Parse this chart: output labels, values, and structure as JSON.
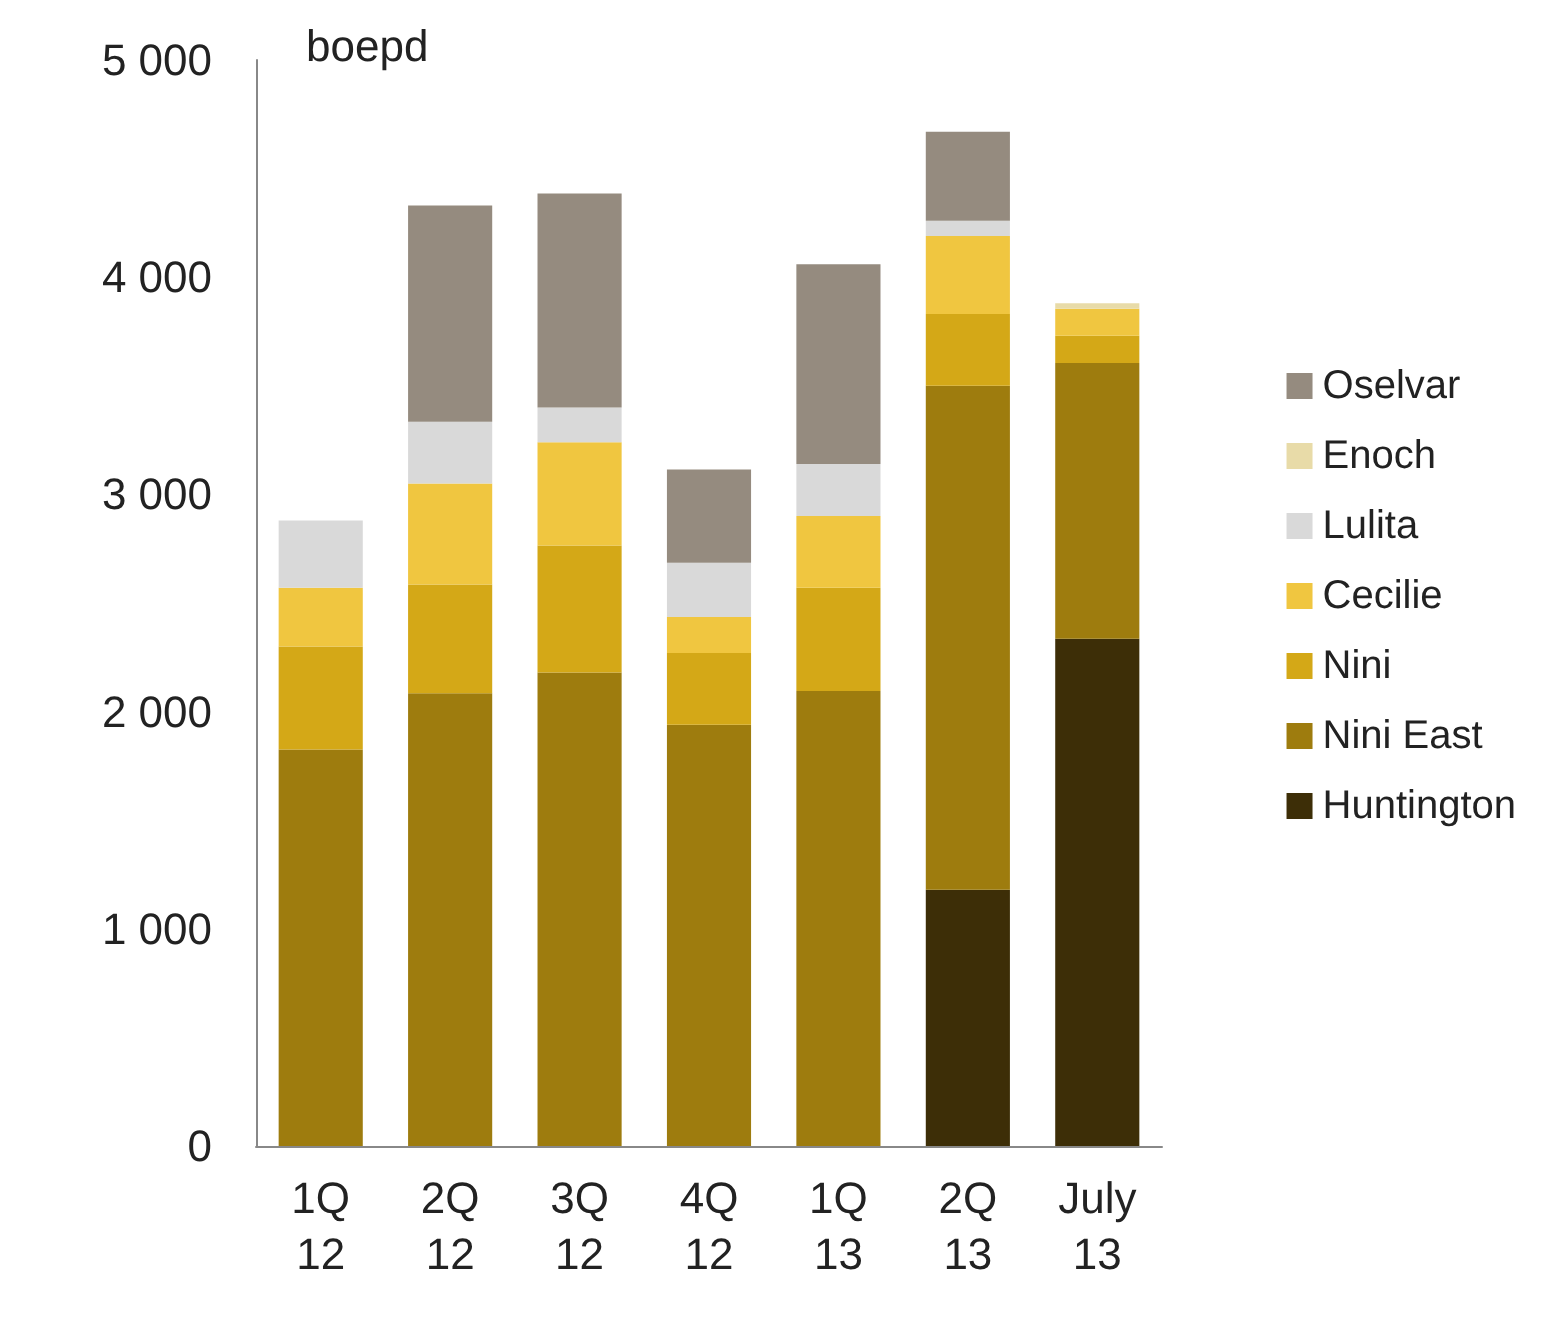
{
  "chart_data": {
    "type": "bar",
    "stacked": true,
    "ylabel": "boepd",
    "categories": [
      "1Q\n12",
      "2Q\n12",
      "3Q\n12",
      "4Q\n12",
      "1Q\n13",
      "2Q\n13",
      "July\n13"
    ],
    "series": [
      {
        "name": "Huntington",
        "color": "#3d2e07",
        "values": [
          0,
          0,
          0,
          0,
          0,
          1180,
          2335
        ]
      },
      {
        "name": "Nini East",
        "color": "#9e7c0e",
        "values": [
          1825,
          2085,
          2180,
          1940,
          2095,
          2320,
          1270
        ]
      },
      {
        "name": "Nini",
        "color": "#d4a817",
        "values": [
          475,
          500,
          585,
          330,
          475,
          330,
          125
        ]
      },
      {
        "name": "Cecilie",
        "color": "#f0c640",
        "values": [
          270,
          465,
          475,
          165,
          330,
          360,
          125
        ]
      },
      {
        "name": "Lulita",
        "color": "#d9d9d9",
        "values": [
          310,
          285,
          160,
          250,
          240,
          70,
          0
        ]
      },
      {
        "name": "Enoch",
        "color": "#e8dba8",
        "values": [
          null,
          null,
          0,
          0,
          0,
          0,
          25
        ]
      },
      {
        "name": "Oselvar",
        "color": "#958b7f",
        "values": [
          0,
          995,
          985,
          430,
          920,
          410,
          0
        ]
      }
    ],
    "ylim": [
      0,
      5000
    ],
    "yticks": [
      {
        "value": 0,
        "label": "0"
      },
      {
        "value": 1000,
        "label": "1 000"
      },
      {
        "value": 2000,
        "label": "2 000"
      },
      {
        "value": 3000,
        "label": "3 000"
      },
      {
        "value": 4000,
        "label": "4 000"
      },
      {
        "value": 5000,
        "label": "5 000"
      }
    ],
    "grid": false,
    "legend": "right"
  }
}
